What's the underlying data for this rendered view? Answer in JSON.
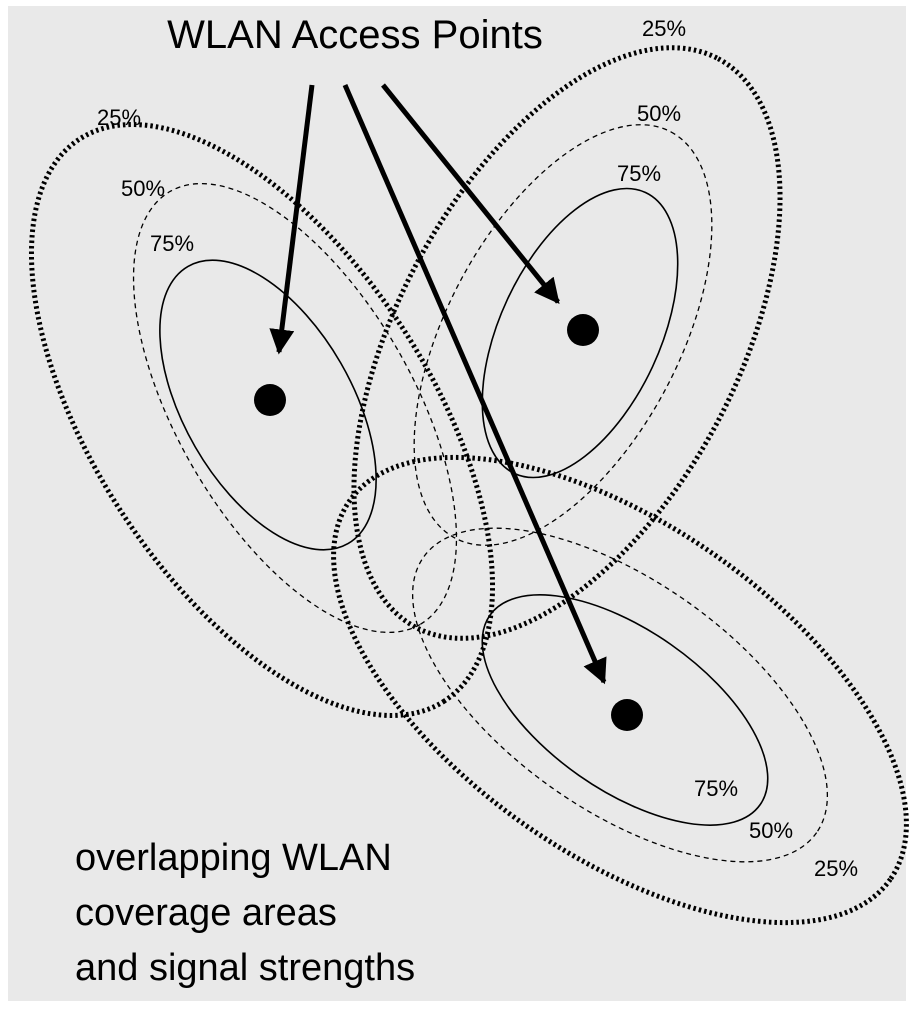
{
  "title": "WLAN Access Points",
  "access_points": [
    {
      "labels": [
        "25%",
        "50%",
        "75%"
      ]
    },
    {
      "labels": [
        "25%",
        "50%",
        "75%"
      ]
    },
    {
      "labels": [
        "25%",
        "50%",
        "75%"
      ]
    }
  ],
  "caption": [
    "overlapping WLAN",
    "coverage areas",
    "and signal strengths"
  ]
}
